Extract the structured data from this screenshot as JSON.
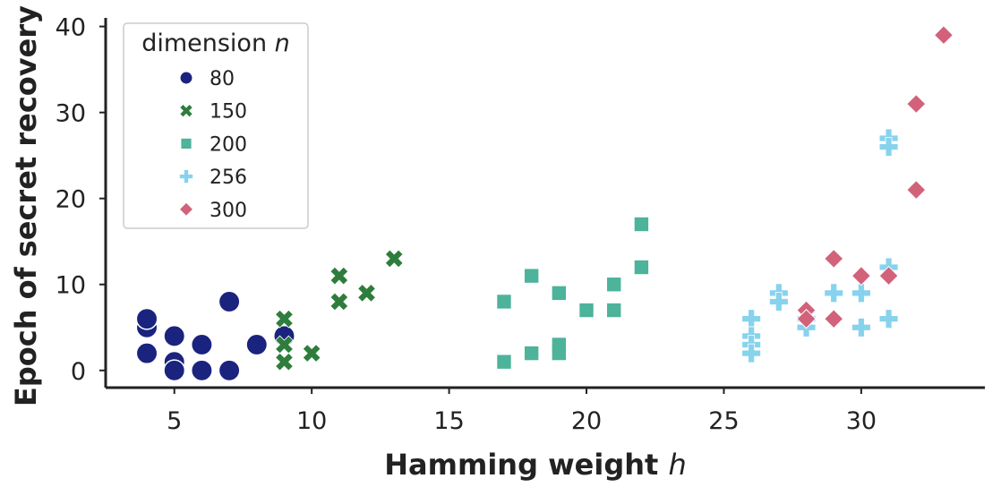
{
  "chart_data": {
    "type": "scatter",
    "xlabel": "Hamming weight",
    "xlabel_var": "h",
    "ylabel": "Epoch of secret recovery",
    "xlim": [
      2.5,
      34.5
    ],
    "ylim": [
      -2,
      41
    ],
    "xticks": [
      5,
      10,
      15,
      20,
      25,
      30
    ],
    "yticks": [
      0,
      10,
      20,
      30,
      40
    ],
    "grid": false,
    "legend": {
      "title": "dimension",
      "title_var": "n",
      "placement": "top-left"
    },
    "series": [
      {
        "name": "80",
        "marker": "circle",
        "color": "#1a237e",
        "points": [
          [
            4,
            5
          ],
          [
            4,
            6
          ],
          [
            4,
            2
          ],
          [
            5,
            4
          ],
          [
            5,
            1
          ],
          [
            5,
            0
          ],
          [
            6,
            3
          ],
          [
            6,
            0
          ],
          [
            7,
            8
          ],
          [
            7,
            0
          ],
          [
            8,
            3
          ],
          [
            9,
            4
          ]
        ]
      },
      {
        "name": "150",
        "marker": "x",
        "color": "#2e7d3c",
        "points": [
          [
            9,
            6
          ],
          [
            9,
            3
          ],
          [
            9,
            1
          ],
          [
            10,
            2
          ],
          [
            11,
            11
          ],
          [
            11,
            8
          ],
          [
            12,
            9
          ],
          [
            13,
            13
          ]
        ]
      },
      {
        "name": "200",
        "marker": "square",
        "color": "#4db39b",
        "points": [
          [
            17,
            8
          ],
          [
            17,
            1
          ],
          [
            18,
            11
          ],
          [
            18,
            2
          ],
          [
            19,
            9
          ],
          [
            19,
            3
          ],
          [
            19,
            2
          ],
          [
            20,
            7
          ],
          [
            21,
            10
          ],
          [
            21,
            7
          ],
          [
            22,
            17
          ],
          [
            22,
            12
          ]
        ]
      },
      {
        "name": "256",
        "marker": "plus",
        "color": "#87d3ee",
        "points": [
          [
            26,
            6
          ],
          [
            26,
            4
          ],
          [
            26,
            3
          ],
          [
            26,
            2
          ],
          [
            27,
            9
          ],
          [
            27,
            8
          ],
          [
            28,
            6
          ],
          [
            28,
            5
          ],
          [
            29,
            9
          ],
          [
            30,
            9
          ],
          [
            30,
            5
          ],
          [
            31,
            27
          ],
          [
            31,
            26
          ],
          [
            31,
            12
          ],
          [
            31,
            6
          ]
        ]
      },
      {
        "name": "300",
        "marker": "diamond",
        "color": "#d2627a",
        "points": [
          [
            28,
            7
          ],
          [
            28,
            6
          ],
          [
            29,
            13
          ],
          [
            29,
            6
          ],
          [
            30,
            11
          ],
          [
            31,
            11
          ],
          [
            32,
            31
          ],
          [
            32,
            21
          ],
          [
            33,
            39
          ]
        ]
      }
    ]
  }
}
